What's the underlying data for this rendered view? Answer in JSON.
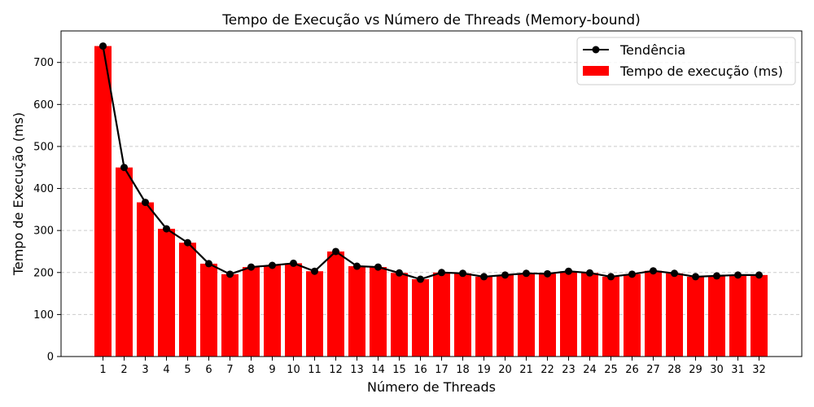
{
  "chart_data": {
    "type": "bar",
    "title": "Tempo de Execução vs Número de Threads (Memory-bound)",
    "xlabel": "Número de Threads",
    "ylabel": "Tempo de Execução (ms)",
    "categories": [
      "1",
      "2",
      "3",
      "4",
      "5",
      "6",
      "7",
      "8",
      "9",
      "10",
      "11",
      "12",
      "13",
      "14",
      "15",
      "16",
      "17",
      "18",
      "19",
      "20",
      "21",
      "22",
      "23",
      "24",
      "25",
      "26",
      "27",
      "28",
      "29",
      "30",
      "31",
      "32"
    ],
    "yticks": [
      0,
      100,
      200,
      300,
      400,
      500,
      600,
      700
    ],
    "ylim": [
      0,
      775
    ],
    "grid": true,
    "legend_position": "top-right",
    "series": [
      {
        "name": "Tempo de execução (ms)",
        "kind": "bar",
        "color": "#ff0000",
        "values": [
          739,
          450,
          367,
          304,
          271,
          221,
          196,
          213,
          217,
          222,
          203,
          250,
          215,
          213,
          199,
          184,
          200,
          198,
          190,
          194,
          198,
          197,
          203,
          199,
          190,
          196,
          204,
          198,
          190,
          192,
          194,
          194
        ]
      },
      {
        "name": "Tendência",
        "kind": "line",
        "color": "#000000",
        "values": [
          739,
          450,
          367,
          304,
          271,
          221,
          196,
          213,
          217,
          222,
          203,
          250,
          215,
          213,
          199,
          184,
          200,
          198,
          190,
          194,
          198,
          197,
          203,
          199,
          190,
          196,
          204,
          198,
          190,
          192,
          194,
          194
        ]
      }
    ]
  }
}
